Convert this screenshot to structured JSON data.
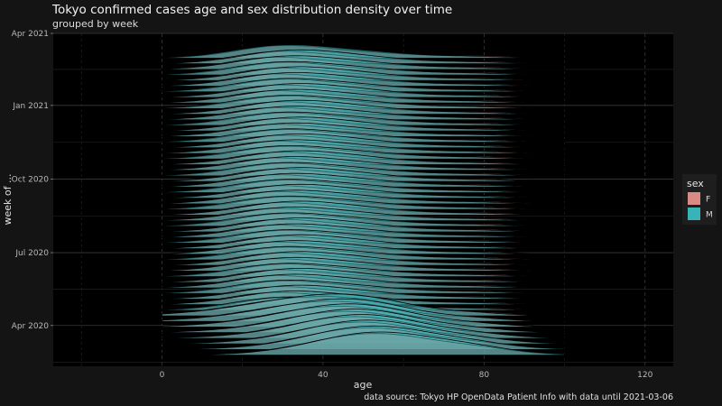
{
  "chart_data": {
    "type": "area",
    "title": "Tokyo confirmed cases age and sex distribution density over time",
    "subtitle": "grouped by week",
    "xlabel": "age",
    "ylabel": "week of ...",
    "caption": "data source: Tokyo HP OpenData Patient Info with data until 2021-03-06",
    "xlim": [
      -27,
      127
    ],
    "x_ticks": [
      0,
      40,
      80,
      120
    ],
    "y_ticks": [
      {
        "label": "Apr 2021",
        "date": "2021-04-01"
      },
      {
        "label": "Jan 2021",
        "date": "2021-01-01"
      },
      {
        "label": "Oct 2020",
        "date": "2020-10-01"
      },
      {
        "label": "Jul 2020",
        "date": "2020-07-01"
      },
      {
        "label": "Apr 2020",
        "date": "2020-04-01"
      }
    ],
    "ylim": [
      "2020-02-10",
      "2021-04-01"
    ],
    "first_week": "2020-02-24",
    "last_week": "2021-03-01",
    "grid": true,
    "legend": {
      "title": "sex",
      "position": "right",
      "entries": [
        {
          "label": "F",
          "color": "#d98a84"
        },
        {
          "label": "M",
          "color": "#38b3b8"
        }
      ]
    },
    "colors": {
      "background": "#141414",
      "panel": "#000000",
      "grid_major": "#3a3a3a",
      "grid_minor": "#262626",
      "ridge_outline": "#000000"
    }
  }
}
